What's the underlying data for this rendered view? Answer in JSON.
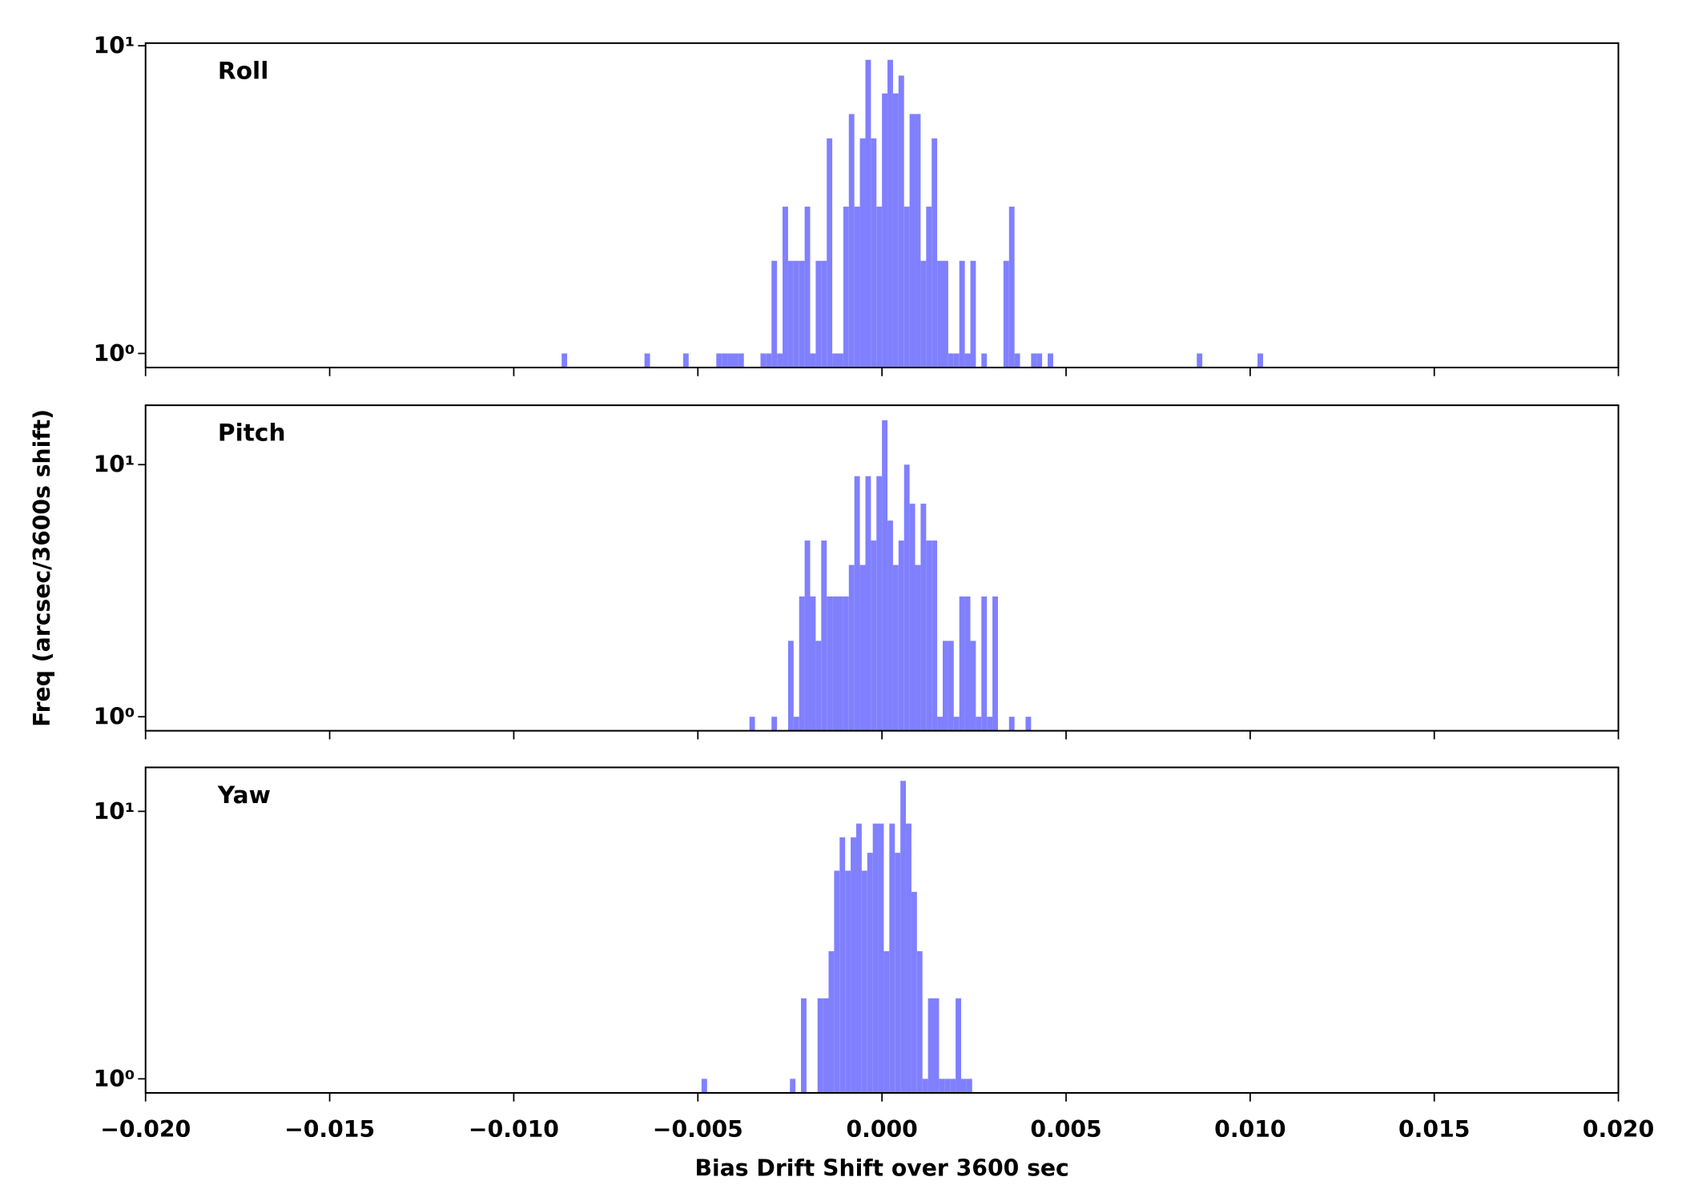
{
  "xlabel": "Bias Drift Shift over 3600 sec",
  "ylabel": "Freq (arcsec/3600s shift)",
  "chart_data": [
    {
      "type": "histogram",
      "label": "Roll",
      "color": "#8080ff",
      "log_y": true,
      "xlim": [
        -0.02,
        0.02
      ],
      "ylim": [
        0.9,
        10.2
      ],
      "yticks": [
        {
          "value": 1,
          "label": "10⁰"
        },
        {
          "value": 10,
          "label": "10¹"
        }
      ],
      "bins": [
        -0.0087,
        -0.00855,
        -0.0084,
        -0.00825,
        -0.0081,
        -0.00795,
        -0.0078,
        -0.00765,
        -0.0075,
        -0.00735,
        -0.0072,
        -0.00705,
        -0.0069,
        -0.00675,
        -0.0066,
        -0.00645,
        -0.0063,
        -0.00615,
        -0.006,
        -0.00585,
        -0.0057,
        -0.00555,
        -0.0054,
        -0.00525,
        -0.0051,
        -0.00495,
        -0.0048,
        -0.00465,
        -0.0045,
        -0.00435,
        -0.0042,
        -0.00405,
        -0.0039,
        -0.00375,
        -0.0036,
        -0.00345,
        -0.0033,
        -0.00315,
        -0.003,
        -0.00285,
        -0.0027,
        -0.00255,
        -0.0024,
        -0.00225,
        -0.0021,
        -0.00195,
        -0.0018,
        -0.00165,
        -0.0015,
        -0.00135,
        -0.0012,
        -0.00105,
        -0.0009,
        -0.00075,
        -0.0006,
        -0.00045,
        -0.0003,
        -0.00015,
        0,
        0.00015,
        0.0003,
        0.00045,
        0.0006,
        0.00075,
        0.0009,
        0.00105,
        0.0012,
        0.00135,
        0.0015,
        0.00165,
        0.0018,
        0.00195,
        0.0021,
        0.00225,
        0.0024,
        0.00255,
        0.0027,
        0.00285,
        0.003,
        0.00315,
        0.0033,
        0.00345,
        0.0036,
        0.00375,
        0.0039,
        0.00405,
        0.0042,
        0.00435,
        0.0045,
        0.00465,
        0.0048,
        0.00495,
        0.0051,
        0.00525,
        0.0054,
        0.00555,
        0.0057,
        0.00585,
        0.006,
        0.00615,
        0.0063,
        0.00645,
        0.0066,
        0.00675,
        0.0069,
        0.00705,
        0.0072,
        0.00735,
        0.0075,
        0.00765,
        0.0078,
        0.00795,
        0.0081,
        0.00825,
        0.0084,
        0.00855,
        0.0087,
        0.00885,
        0.009,
        0.00915,
        0.0093,
        0.00945,
        0.0096,
        0.00975,
        0.0099,
        0.01005,
        0.0102,
        0.01035
      ],
      "counts": [
        1,
        0,
        0,
        0,
        0,
        0,
        0,
        0,
        0,
        0,
        0,
        0,
        0,
        0,
        0,
        1,
        0,
        0,
        0,
        0,
        0,
        0,
        1,
        0,
        0,
        0,
        0,
        0,
        1,
        1,
        1,
        1,
        1,
        0,
        0,
        0,
        1,
        1,
        2,
        1,
        3,
        2,
        2,
        2,
        3,
        1,
        2,
        2,
        5,
        1,
        1,
        3,
        6,
        3,
        5,
        9,
        5,
        3,
        7,
        9,
        7,
        8,
        3,
        6,
        6,
        2,
        3,
        5,
        2,
        2,
        1,
        1,
        2,
        1,
        2,
        0,
        1,
        0,
        0,
        0,
        2,
        3,
        1,
        0,
        0,
        1,
        1,
        0,
        1,
        0,
        0,
        0,
        0,
        0,
        0,
        0,
        0,
        0,
        0,
        0,
        0,
        0,
        0,
        0,
        0,
        0,
        0,
        0,
        0,
        0,
        0,
        0,
        0,
        0,
        0,
        1,
        0,
        0,
        0,
        0,
        0,
        0,
        0,
        0,
        0,
        0,
        1
      ]
    },
    {
      "type": "histogram",
      "label": "Pitch",
      "color": "#8080ff",
      "log_y": true,
      "xlim": [
        -0.02,
        0.02
      ],
      "ylim": [
        0.88,
        17.2
      ],
      "yticks": [
        {
          "value": 1,
          "label": "10⁰"
        },
        {
          "value": 10,
          "label": "10¹"
        }
      ],
      "bins": [
        -0.0036,
        -0.00345,
        -0.0033,
        -0.00315,
        -0.003,
        -0.00285,
        -0.0027,
        -0.00255,
        -0.0024,
        -0.00225,
        -0.0021,
        -0.00195,
        -0.0018,
        -0.00165,
        -0.0015,
        -0.00135,
        -0.0012,
        -0.00105,
        -0.0009,
        -0.00075,
        -0.0006,
        -0.00045,
        -0.0003,
        -0.00015,
        0,
        0.00015,
        0.0003,
        0.00045,
        0.0006,
        0.00075,
        0.0009,
        0.00105,
        0.0012,
        0.00135,
        0.0015,
        0.00165,
        0.0018,
        0.00195,
        0.0021,
        0.00225,
        0.0024,
        0.00255,
        0.0027,
        0.00285,
        0.003,
        0.00315,
        0.0033,
        0.00345,
        0.0036,
        0.00375,
        0.0039,
        0.00405
      ],
      "counts": [
        1,
        0,
        0,
        0,
        1,
        0,
        0,
        2,
        1,
        3,
        5,
        3,
        2,
        5,
        3,
        3,
        3,
        3,
        4,
        9,
        4,
        9,
        5,
        9,
        15,
        6,
        4,
        5,
        10,
        7,
        4,
        7,
        5,
        5,
        1,
        2,
        2,
        1,
        3,
        3,
        2,
        1,
        3,
        1,
        3,
        0,
        0,
        1,
        0,
        0,
        1
      ]
    },
    {
      "type": "histogram",
      "label": "Yaw",
      "color": "#8080ff",
      "log_y": true,
      "xlim": [
        -0.02,
        0.02
      ],
      "ylim": [
        0.886,
        14.6
      ],
      "yticks": [
        {
          "value": 1,
          "label": "10⁰"
        },
        {
          "value": 10,
          "label": "10¹"
        }
      ],
      "xticks": [
        {
          "value": -0.02,
          "label": "−0.020"
        },
        {
          "value": -0.015,
          "label": "−0.015"
        },
        {
          "value": -0.01,
          "label": "−0.010"
        },
        {
          "value": -0.005,
          "label": "−0.005"
        },
        {
          "value": 0,
          "label": "0.000"
        },
        {
          "value": 0.005,
          "label": "0.005"
        },
        {
          "value": 0.01,
          "label": "0.010"
        },
        {
          "value": 0.015,
          "label": "0.015"
        },
        {
          "value": 0.02,
          "label": "0.020"
        }
      ],
      "bins": [
        -0.0049,
        -0.00475,
        -0.0046,
        -0.00445,
        -0.0043,
        -0.00415,
        -0.004,
        -0.00385,
        -0.0037,
        -0.00355,
        -0.0034,
        -0.00325,
        -0.0031,
        -0.00295,
        -0.0028,
        -0.00265,
        -0.0025,
        -0.00235,
        -0.0022,
        -0.00205,
        -0.0019,
        -0.00175,
        -0.0016,
        -0.00145,
        -0.0013,
        -0.00115,
        -0.001,
        -0.00085,
        -0.0007,
        -0.00055,
        -0.0004,
        -0.00025,
        -0.0001,
        5e-05,
        0.0002,
        0.00035,
        0.0005,
        0.00065,
        0.0008,
        0.00095,
        0.0011,
        0.00125,
        0.0014,
        0.00155,
        0.0017,
        0.00185,
        0.002,
        0.00215,
        0.0023,
        0.00245
      ],
      "counts": [
        1,
        0,
        0,
        0,
        0,
        0,
        0,
        0,
        0,
        0,
        0,
        0,
        0,
        0,
        0,
        0,
        1,
        0,
        2,
        0,
        0,
        2,
        2,
        3,
        6,
        8,
        6,
        8,
        9,
        6,
        7,
        9,
        9,
        3,
        9,
        7,
        13,
        9,
        5,
        3,
        1,
        2,
        2,
        1,
        1,
        1,
        2,
        1,
        1
      ]
    }
  ]
}
